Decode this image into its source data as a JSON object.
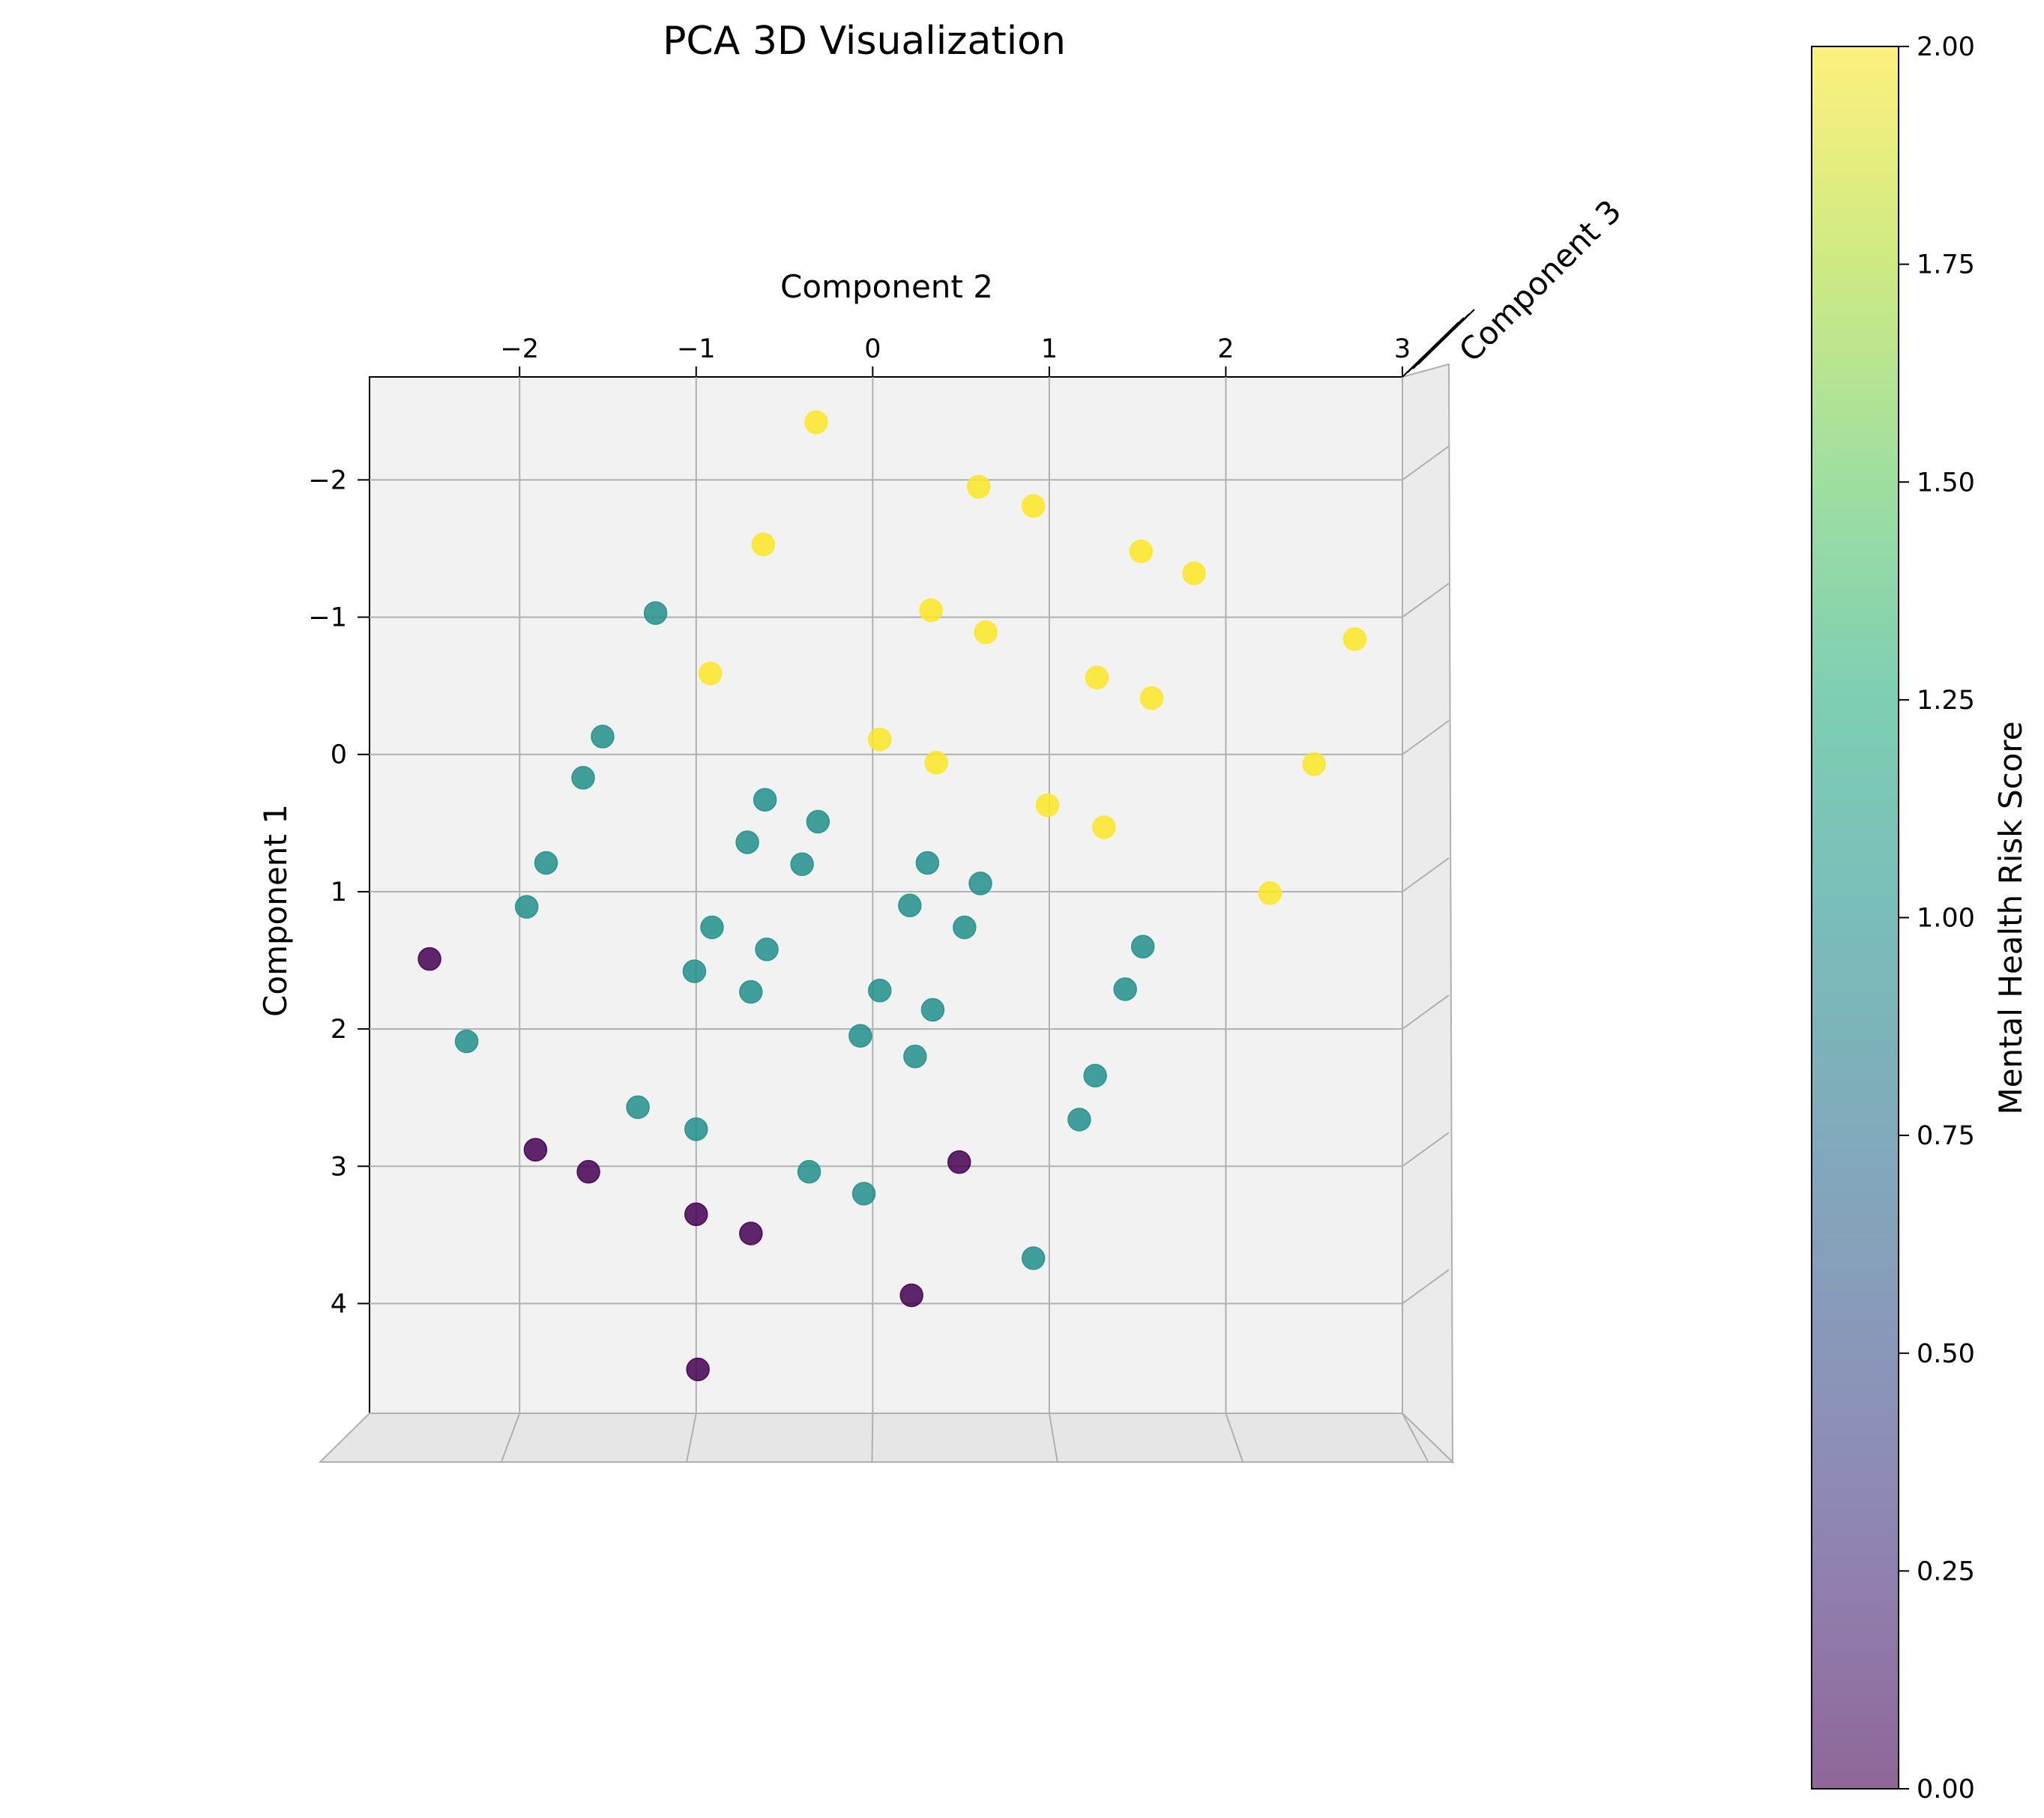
{
  "chart_data": {
    "type": "scatter",
    "projection": "3d",
    "title": "PCA 3D Visualization",
    "xlabel": "Component 2",
    "ylabel": "Component 1",
    "zlabel": "Component 3",
    "x_ticks": [
      -2,
      -1,
      0,
      1,
      2,
      3
    ],
    "y_ticks": [
      -2,
      -1,
      0,
      1,
      2,
      3,
      4
    ],
    "x_tick_labels": [
      "−2",
      "−1",
      "0",
      "1",
      "2",
      "3"
    ],
    "y_tick_labels": [
      "−2",
      "−1",
      "0",
      "1",
      "2",
      "3",
      "4"
    ],
    "xlim": [
      -2.85,
      3.0
    ],
    "ylim": [
      -2.75,
      4.8
    ],
    "y_axis_inverted": true,
    "grid": true,
    "colormap": "viridis",
    "colorbar": {
      "label": "Mental Health Risk Score",
      "range": [
        0,
        2
      ],
      "ticks": [
        0,
        0.25,
        0.5,
        0.75,
        1.0,
        1.25,
        1.5,
        1.75,
        2.0
      ],
      "tick_labels": [
        "0.00",
        "0.25",
        "0.50",
        "0.75",
        "1.00",
        "1.25",
        "1.50",
        "1.75",
        "2.00"
      ],
      "placement": "right"
    },
    "colors": {
      "score_0": "#440154",
      "score_1": "#21918c",
      "score_2": "#fde725",
      "pane": "#f2f2f2",
      "grid": "#b0b0b0"
    },
    "points": [
      {
        "x": -0.32,
        "y": -2.42,
        "score": 2
      },
      {
        "x": 0.6,
        "y": -1.95,
        "score": 2
      },
      {
        "x": 0.91,
        "y": -1.81,
        "score": 2
      },
      {
        "x": -0.62,
        "y": -1.53,
        "score": 2
      },
      {
        "x": 1.52,
        "y": -1.48,
        "score": 2
      },
      {
        "x": 1.82,
        "y": -1.32,
        "score": 2
      },
      {
        "x": 0.33,
        "y": -1.05,
        "score": 2
      },
      {
        "x": 0.64,
        "y": -0.89,
        "score": 2
      },
      {
        "x": 2.73,
        "y": -0.84,
        "score": 2
      },
      {
        "x": -0.92,
        "y": -0.59,
        "score": 2
      },
      {
        "x": 1.27,
        "y": -0.56,
        "score": 2
      },
      {
        "x": 1.58,
        "y": -0.41,
        "score": 2
      },
      {
        "x": 0.04,
        "y": -0.11,
        "score": 2
      },
      {
        "x": 0.36,
        "y": 0.06,
        "score": 2
      },
      {
        "x": 2.5,
        "y": 0.07,
        "score": 2
      },
      {
        "x": 0.99,
        "y": 0.37,
        "score": 2
      },
      {
        "x": 1.31,
        "y": 0.53,
        "score": 2
      },
      {
        "x": 2.25,
        "y": 1.01,
        "score": 2
      },
      {
        "x": -1.23,
        "y": -1.03,
        "score": 1
      },
      {
        "x": -1.53,
        "y": -0.13,
        "score": 1
      },
      {
        "x": -1.64,
        "y": 0.17,
        "score": 1
      },
      {
        "x": -0.61,
        "y": 0.33,
        "score": 1
      },
      {
        "x": -0.31,
        "y": 0.49,
        "score": 1
      },
      {
        "x": -0.71,
        "y": 0.64,
        "score": 1
      },
      {
        "x": -1.85,
        "y": 0.79,
        "score": 1
      },
      {
        "x": -0.4,
        "y": 0.8,
        "score": 1
      },
      {
        "x": 0.31,
        "y": 0.79,
        "score": 1
      },
      {
        "x": 0.61,
        "y": 0.94,
        "score": 1
      },
      {
        "x": -1.96,
        "y": 1.11,
        "score": 1
      },
      {
        "x": 0.21,
        "y": 1.1,
        "score": 1
      },
      {
        "x": -0.91,
        "y": 1.26,
        "score": 1
      },
      {
        "x": 0.52,
        "y": 1.26,
        "score": 1
      },
      {
        "x": -0.6,
        "y": 1.42,
        "score": 1
      },
      {
        "x": 1.53,
        "y": 1.4,
        "score": 1
      },
      {
        "x": -1.01,
        "y": 1.58,
        "score": 1
      },
      {
        "x": -0.69,
        "y": 1.73,
        "score": 1
      },
      {
        "x": 0.04,
        "y": 1.72,
        "score": 1
      },
      {
        "x": 1.43,
        "y": 1.71,
        "score": 1
      },
      {
        "x": 0.34,
        "y": 1.86,
        "score": 1
      },
      {
        "x": -2.3,
        "y": 2.09,
        "score": 1
      },
      {
        "x": -0.07,
        "y": 2.05,
        "score": 1
      },
      {
        "x": 0.24,
        "y": 2.2,
        "score": 1
      },
      {
        "x": 1.26,
        "y": 2.34,
        "score": 1
      },
      {
        "x": -1.33,
        "y": 2.57,
        "score": 1
      },
      {
        "x": 1.17,
        "y": 2.66,
        "score": 1
      },
      {
        "x": -1.0,
        "y": 2.73,
        "score": 1
      },
      {
        "x": -0.36,
        "y": 3.04,
        "score": 1
      },
      {
        "x": -0.05,
        "y": 3.2,
        "score": 1
      },
      {
        "x": 0.91,
        "y": 3.67,
        "score": 1
      },
      {
        "x": -2.51,
        "y": 1.49,
        "score": 0
      },
      {
        "x": -1.91,
        "y": 2.88,
        "score": 0
      },
      {
        "x": -1.61,
        "y": 3.04,
        "score": 0
      },
      {
        "x": 0.49,
        "y": 2.97,
        "score": 0
      },
      {
        "x": -1.0,
        "y": 3.35,
        "score": 0
      },
      {
        "x": -0.69,
        "y": 3.49,
        "score": 0
      },
      {
        "x": 0.22,
        "y": 3.94,
        "score": 0
      },
      {
        "x": -0.99,
        "y": 4.48,
        "score": 0
      }
    ]
  }
}
